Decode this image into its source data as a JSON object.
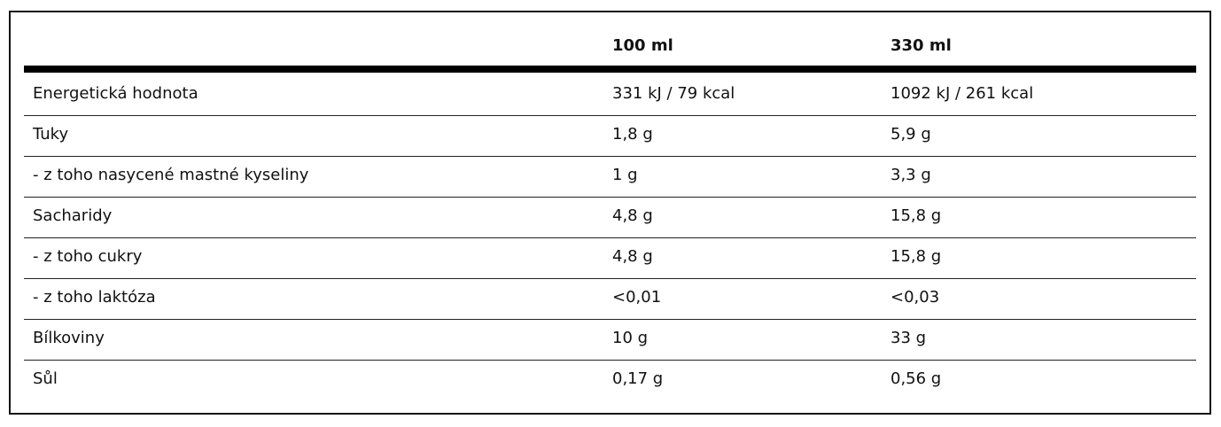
{
  "table": {
    "columns": [
      "100 ml",
      "330 ml"
    ],
    "rows": [
      [
        "Energetická hodnota",
        "331 kJ / 79 kcal",
        "1092 kJ / 261 kcal"
      ],
      [
        "Tuky",
        "1,8 g",
        "5,9 g"
      ],
      [
        "- z toho nasycené mastné kyseliny",
        "1 g",
        "3,3 g"
      ],
      [
        "Sacharidy",
        "4,8 g",
        "15,8 g"
      ],
      [
        "- z toho cukry",
        "4,8 g",
        "15,8 g"
      ],
      [
        "- z toho laktóza",
        "<0,01",
        "<0,03"
      ],
      [
        "Bílkoviny",
        "10 g",
        "33 g"
      ],
      [
        "Sůl",
        "0,17 g",
        "0,56 g"
      ]
    ]
  }
}
